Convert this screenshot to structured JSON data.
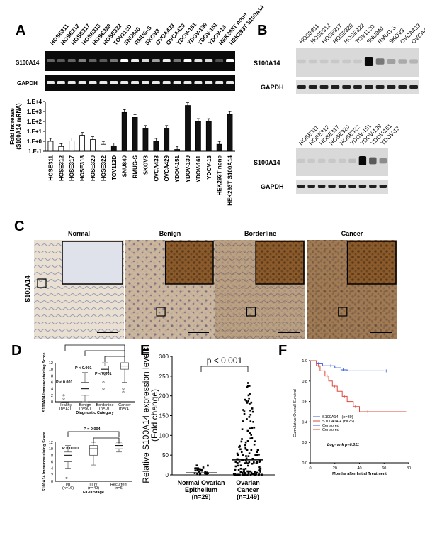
{
  "panel_labels": {
    "a": "A",
    "b": "B",
    "c": "C",
    "d": "D",
    "e": "E",
    "f": "F"
  },
  "gel_a": {
    "lanes": [
      "HOSE311",
      "HOSE312",
      "HOSE317",
      "HOSE318",
      "HOSE320",
      "HOSE322",
      "TOV112D",
      "SNU840",
      "RMUG-S",
      "SKOV3",
      "OVCA433",
      "OVCA429",
      "YDOV-151",
      "YDOV-139",
      "YDOV-161",
      "YDOV-13",
      "HEK293T none",
      "HEK293T S100A14"
    ],
    "rows": [
      "S100A14",
      "GAPDH"
    ],
    "s100a14_intensity": [
      0.2,
      0.15,
      0.2,
      0.35,
      0.2,
      0.15,
      0.3,
      1,
      0.9,
      0.8,
      0.5,
      0.9,
      0.3,
      1,
      0.85,
      0.8,
      0.1,
      1
    ]
  },
  "blot_b1": {
    "lanes": [
      "HOSE311",
      "HOSE312",
      "HOSE317",
      "HOSE320",
      "HOSE322",
      "TOV112D",
      "SNU840",
      "RMUG-S",
      "SKOV3",
      "OVCA433",
      "OVCA429"
    ],
    "rows": [
      "S100A14",
      "GAPDH"
    ],
    "s100a14_intensity": [
      0.05,
      0.05,
      0.05,
      0.05,
      0.05,
      0.05,
      1,
      0.45,
      0.25,
      0.2,
      0.15
    ]
  },
  "blot_b2": {
    "lanes": [
      "HOSE311",
      "HOSE312",
      "HOSE317",
      "HOSE320",
      "HOSE322",
      "YDOV-151",
      "YDOV-139",
      "YDOV-161",
      "YDOV-13"
    ],
    "rows": [
      "S100A14",
      "GAPDH"
    ],
    "s100a14_intensity": [
      0.05,
      0.05,
      0.05,
      0.05,
      0.05,
      0.1,
      1,
      0.6,
      0.35
    ]
  },
  "histology": {
    "row_label": "S100A14",
    "panels": [
      {
        "title": "Normal",
        "stain": 0.05
      },
      {
        "title": "Benign",
        "stain": 0.4
      },
      {
        "title": "Borderline",
        "stain": 0.6
      },
      {
        "title": "Cancer",
        "stain": 0.95
      }
    ]
  },
  "chart_data": [
    {
      "id": "A-bar",
      "type": "bar",
      "ylabel": "Fold Increase\n(S100A14 mRNA)",
      "y_scale": "log",
      "y_ticks": [
        "1.E+4",
        "1.E+3",
        "1.E+2",
        "1.E+1",
        "1.E+0",
        "1.E-1"
      ],
      "ylim": [
        0.1,
        10000
      ],
      "categories": [
        "HOSE311",
        "HOSE312",
        "HOSE317",
        "HOSE318",
        "HOSE320",
        "HOSE322",
        "TOV112D",
        "SNU840",
        "RMUG-S",
        "SKOV3",
        "OVCA433",
        "OVCA429",
        "YDOV-151",
        "YDOV-139",
        "YDOV-161",
        "YDOV-13",
        "HEK293T none",
        "HEK293T S100A14"
      ],
      "values": [
        1.0,
        0.3,
        1.1,
        4.0,
        1.5,
        0.5,
        0.35,
        800,
        250,
        20,
        1.0,
        20,
        0.15,
        4000,
        100,
        100,
        0.5,
        500
      ],
      "filled": [
        false,
        false,
        false,
        false,
        false,
        false,
        true,
        true,
        true,
        true,
        true,
        true,
        true,
        true,
        true,
        true,
        true,
        true
      ]
    },
    {
      "id": "D-top",
      "type": "box",
      "ylabel": "S100A14 Immunostaining Score",
      "xlabel": "Diagnostic Category",
      "y_ticks": [
        "12",
        "10",
        "8",
        "6",
        "4",
        "2",
        "0"
      ],
      "ylim": [
        0,
        12
      ],
      "categories": [
        "Healthy (n=13)",
        "Benign (n=50)",
        "Borderline (n=10)",
        "Cancer (n=71)"
      ],
      "boxes": [
        {
          "min": 0,
          "q1": 0,
          "median": 0,
          "q3": 0,
          "max": 0,
          "outliers": [
            1,
            2
          ]
        },
        {
          "min": 0,
          "q1": 2,
          "median": 4,
          "q3": 6,
          "max": 9,
          "outliers": []
        },
        {
          "min": 8,
          "q1": 9,
          "median": 10,
          "q3": 11,
          "max": 12,
          "outliers": [
            4,
            6
          ]
        },
        {
          "min": 6,
          "q1": 10,
          "median": 11,
          "q3": 12,
          "max": 12,
          "outliers": [
            3,
            4
          ]
        }
      ],
      "annotations": [
        "P < 0.001",
        "P < 0.001",
        "P < 0.001"
      ]
    },
    {
      "id": "D-bottom",
      "type": "box",
      "ylabel": "S100A14 Immunostaining Score",
      "xlabel": "FIGO Stage",
      "y_ticks": [
        "12",
        "10",
        "8",
        "6",
        "4",
        "2",
        "0"
      ],
      "ylim": [
        0,
        12
      ],
      "categories": [
        "I/II (n=16)",
        "III/IV (n=49)",
        "Recurrent (n=6)"
      ],
      "boxes": [
        {
          "min": 4,
          "q1": 6,
          "median": 8,
          "q3": 9,
          "max": 11,
          "outliers": [
            1
          ]
        },
        {
          "min": 5,
          "q1": 8,
          "median": 10,
          "q3": 11,
          "max": 12,
          "outliers": []
        },
        {
          "min": 9,
          "q1": 10,
          "median": 11,
          "q3": 11.5,
          "max": 12,
          "outliers": []
        }
      ],
      "annotations": [
        "P = 0.001",
        "P = 0.004"
      ]
    },
    {
      "id": "E-dot",
      "type": "scatter",
      "ylabel": "Relative S100A14 expression levels\n(Fold change)",
      "y_ticks": [
        "0",
        "50",
        "100",
        "150",
        "200",
        "250",
        "300"
      ],
      "ylim": [
        0,
        300
      ],
      "categories": [
        "Normal Ovarian\nEpithelium\n(n=29)",
        "Ovarian\nCancer\n(n=149)"
      ],
      "group_n": [
        29,
        149
      ],
      "group_median": [
        5,
        38
      ],
      "group_max": [
        25,
        250
      ],
      "annotation": "p < 0.001"
    },
    {
      "id": "F-km",
      "type": "line",
      "ylabel": "Cumulative Overall Survival",
      "xlabel": "Months after Initial Treatment",
      "y_ticks": [
        "1.0",
        "0.8",
        "0.6",
        "0.4",
        "0.2",
        "0.0"
      ],
      "x_ticks": [
        "0",
        "20",
        "40",
        "60",
        "80"
      ],
      "ylim": [
        0,
        1
      ],
      "xlim": [
        0,
        80
      ],
      "series": [
        {
          "name": "S100A14 - (n=39)",
          "color": "#3a5bd9",
          "x": [
            0,
            5,
            10,
            15,
            20,
            25,
            30,
            60
          ],
          "y": [
            1.0,
            0.97,
            0.95,
            0.95,
            0.93,
            0.91,
            0.9,
            0.9
          ]
        },
        {
          "name": "S100A14 + (n=26)",
          "color": "#e0483e",
          "x": [
            0,
            5,
            8,
            12,
            15,
            18,
            22,
            26,
            30,
            35,
            40,
            45,
            78
          ],
          "y": [
            1.0,
            0.95,
            0.9,
            0.85,
            0.8,
            0.75,
            0.7,
            0.65,
            0.6,
            0.55,
            0.5,
            0.5,
            0.5
          ]
        }
      ],
      "legend": [
        "S100A14 - (n=39)",
        "S100A14 + (n=26)",
        "Censored",
        "Censored"
      ],
      "annotation": "Log-rank p=0.011"
    }
  ]
}
